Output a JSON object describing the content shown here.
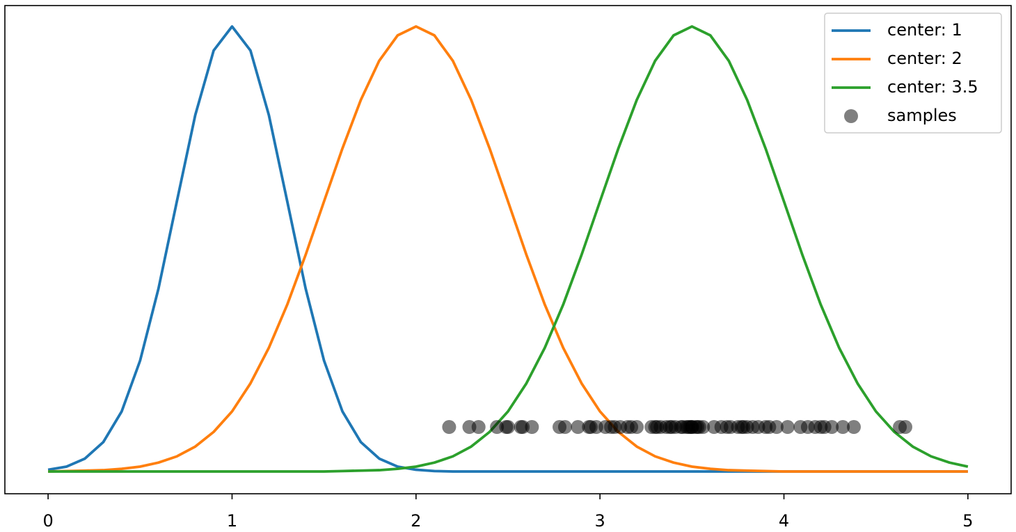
{
  "chart_data": {
    "type": "line",
    "x": [
      0,
      0.1,
      0.2,
      0.3,
      0.4,
      0.5,
      0.6,
      0.7,
      0.8,
      0.9,
      1,
      1.1,
      1.2,
      1.3,
      1.4,
      1.5,
      1.6,
      1.7,
      1.8,
      1.9,
      2,
      2.1,
      2.2,
      2.3,
      2.4,
      2.5,
      2.6,
      2.7,
      2.8,
      2.9,
      3,
      3.1,
      3.2,
      3.3,
      3.4,
      3.5,
      3.6,
      3.7,
      3.8,
      3.9,
      4,
      4.1,
      4.2,
      4.3,
      4.4,
      4.5,
      4.6,
      4.7,
      4.8,
      4.9,
      5
    ],
    "series": [
      {
        "name": "center: 1",
        "color": "#1f77b4",
        "values": [
          0.004,
          0.011,
          0.029,
          0.066,
          0.135,
          0.249,
          0.411,
          0.607,
          0.801,
          0.946,
          1,
          0.946,
          0.801,
          0.607,
          0.411,
          0.249,
          0.135,
          0.066,
          0.029,
          0.011,
          0.004,
          0.001,
          0,
          0,
          0,
          0,
          0,
          0,
          0,
          0,
          0,
          0,
          0,
          0,
          0,
          0,
          0,
          0,
          0,
          0,
          0,
          0,
          0,
          0,
          0,
          0,
          0,
          0,
          0,
          0,
          0
        ]
      },
      {
        "name": "center: 2",
        "color": "#ff7f0e",
        "values": [
          0,
          0.001,
          0.002,
          0.003,
          0.006,
          0.011,
          0.02,
          0.034,
          0.056,
          0.089,
          0.135,
          0.198,
          0.278,
          0.375,
          0.487,
          0.607,
          0.726,
          0.835,
          0.923,
          0.98,
          1,
          0.98,
          0.923,
          0.835,
          0.726,
          0.607,
          0.487,
          0.375,
          0.278,
          0.198,
          0.135,
          0.089,
          0.056,
          0.034,
          0.02,
          0.011,
          0.006,
          0.003,
          0.002,
          0.001,
          0,
          0,
          0,
          0,
          0,
          0,
          0,
          0,
          0,
          0,
          0
        ]
      },
      {
        "name": "center: 3.5",
        "color": "#2ca02c",
        "values": [
          0,
          0,
          0,
          0,
          0,
          0,
          0,
          0,
          0,
          0,
          0,
          0,
          0,
          0,
          0,
          0,
          0.001,
          0.002,
          0.003,
          0.006,
          0.011,
          0.02,
          0.034,
          0.056,
          0.089,
          0.135,
          0.198,
          0.278,
          0.375,
          0.487,
          0.607,
          0.726,
          0.835,
          0.923,
          0.98,
          1,
          0.98,
          0.923,
          0.835,
          0.726,
          0.607,
          0.487,
          0.375,
          0.278,
          0.198,
          0.135,
          0.089,
          0.056,
          0.034,
          0.02,
          0.011
        ]
      },
      {
        "name": "samples",
        "type": "scatter",
        "color": "#000000",
        "opacity": 0.5,
        "x": [
          2.18,
          2.29,
          2.34,
          2.44,
          2.49,
          2.5,
          2.57,
          2.58,
          2.63,
          2.78,
          2.81,
          2.88,
          2.94,
          2.95,
          2.98,
          3.03,
          3.06,
          3.08,
          3.11,
          3.15,
          3.17,
          3.2,
          3.28,
          3.3,
          3.31,
          3.33,
          3.36,
          3.38,
          3.39,
          3.41,
          3.44,
          3.45,
          3.47,
          3.48,
          3.49,
          3.5,
          3.5,
          3.52,
          3.53,
          3.54,
          3.56,
          3.62,
          3.66,
          3.69,
          3.71,
          3.75,
          3.77,
          3.78,
          3.8,
          3.83,
          3.86,
          3.9,
          3.92,
          3.96,
          4.02,
          4.09,
          4.13,
          4.17,
          4.2,
          4.22,
          4.26,
          4.32,
          4.38,
          4.63,
          4.66
        ],
        "values": [
          0.1,
          0.1,
          0.1,
          0.1,
          0.1,
          0.1,
          0.1,
          0.1,
          0.1,
          0.1,
          0.1,
          0.1,
          0.1,
          0.1,
          0.1,
          0.1,
          0.1,
          0.1,
          0.1,
          0.1,
          0.1,
          0.1,
          0.1,
          0.1,
          0.1,
          0.1,
          0.1,
          0.1,
          0.1,
          0.1,
          0.1,
          0.1,
          0.1,
          0.1,
          0.1,
          0.1,
          0.1,
          0.1,
          0.1,
          0.1,
          0.1,
          0.1,
          0.1,
          0.1,
          0.1,
          0.1,
          0.1,
          0.1,
          0.1,
          0.1,
          0.1,
          0.1,
          0.1,
          0.1,
          0.1,
          0.1,
          0.1,
          0.1,
          0.1,
          0.1,
          0.1,
          0.1,
          0.1,
          0.1,
          0.1
        ]
      }
    ],
    "xlim": [
      -0.235,
      5.235
    ],
    "xticks": [
      0,
      1,
      2,
      3,
      4,
      5
    ],
    "ylim": [
      -0.05,
      1.047
    ],
    "legend": "upper right"
  }
}
